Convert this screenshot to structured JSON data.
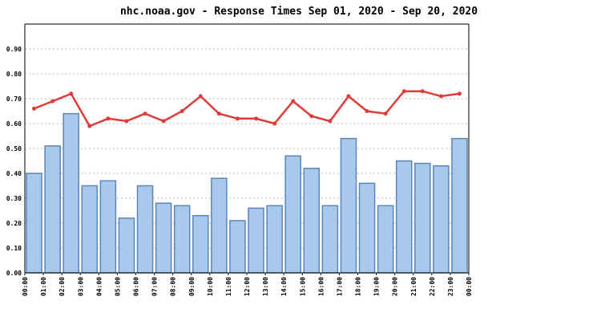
{
  "chart_data": {
    "type": "bar_line",
    "title": "nhc.noaa.gov - Response Times Sep 01, 2020 - Sep 20, 2020",
    "xticks": [
      "00:00",
      "01:00",
      "02:00",
      "03:00",
      "04:00",
      "05:00",
      "06:00",
      "07:00",
      "08:00",
      "09:00",
      "10:00",
      "11:00",
      "12:00",
      "13:00",
      "14:00",
      "15:00",
      "16:00",
      "17:00",
      "18:00",
      "19:00",
      "20:00",
      "21:00",
      "22:00",
      "23:00",
      "00:00"
    ],
    "series": [
      {
        "type": "bar",
        "color": "#a8c8ec",
        "values": [
          0.4,
          0.51,
          0.64,
          0.35,
          0.37,
          0.22,
          0.35,
          0.28,
          0.27,
          0.23,
          0.38,
          0.21,
          0.26,
          0.27,
          0.47,
          0.42,
          0.27,
          0.54,
          0.36,
          0.27,
          0.45,
          0.44,
          0.43,
          0.54
        ]
      },
      {
        "type": "line",
        "color": "#e03a3a",
        "values": [
          0.66,
          0.69,
          0.72,
          0.59,
          0.62,
          0.61,
          0.64,
          0.61,
          0.65,
          0.71,
          0.64,
          0.62,
          0.62,
          0.6,
          0.69,
          0.63,
          0.61,
          0.71,
          0.65,
          0.64,
          0.73,
          0.73,
          0.71,
          0.72
        ]
      }
    ],
    "ylim": [
      0,
      1.0
    ],
    "yticks": [
      {
        "value": 0,
        "label": "0.00"
      },
      {
        "value": 0.1,
        "label": "0.10"
      },
      {
        "value": 0.2,
        "label": "0.20"
      },
      {
        "value": 0.3,
        "label": "0.30"
      },
      {
        "value": 0.4,
        "label": "0.40"
      },
      {
        "value": 0.5,
        "label": "0.50"
      },
      {
        "value": 0.6,
        "label": "0.60"
      },
      {
        "value": 0.7,
        "label": "0.70"
      },
      {
        "value": 0.8,
        "label": "0.80"
      },
      {
        "value": 0.9,
        "label": "0.90"
      }
    ],
    "grid": true
  }
}
